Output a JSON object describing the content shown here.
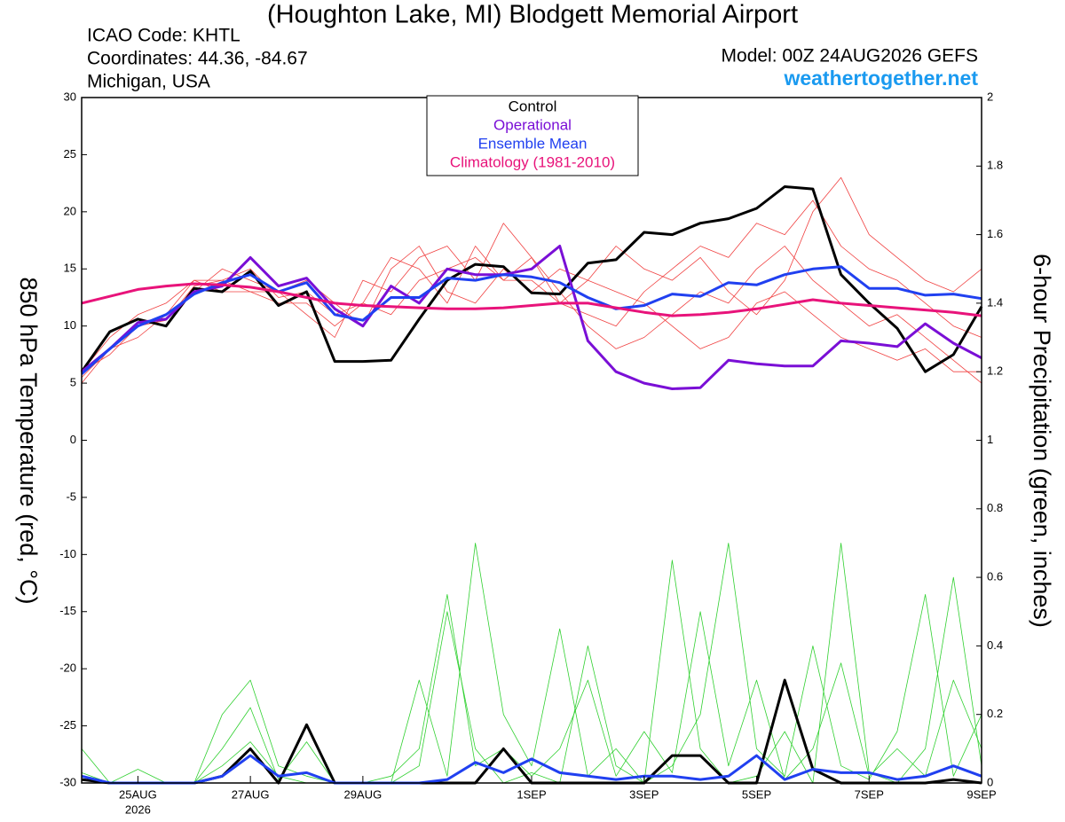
{
  "chart_data": {
    "type": "line",
    "title": "(Houghton Lake, MI) Blodgett Memorial Airport",
    "header_left": [
      "ICAO Code: KHTL",
      "Coordinates: 44.36, -84.67",
      "Michigan, USA"
    ],
    "model": "Model: 00Z 24AUG2026 GEFS",
    "site": "weathertogether.net",
    "y_label": "850 hPa Temperature (red, °C)",
    "y2_label": "6-hour Precipitation (green, inches)",
    "x": [
      0,
      12,
      24,
      36,
      48,
      60,
      72,
      84,
      96,
      108,
      120,
      132,
      144,
      156,
      168,
      180,
      192,
      204,
      216,
      228,
      240,
      252,
      264,
      276,
      288,
      300,
      312,
      324,
      336,
      348,
      360,
      372,
      384
    ],
    "xlim": [
      0,
      384
    ],
    "xticks": [
      {
        "value": 24,
        "label": "25AUG"
      },
      {
        "value": 72,
        "label": "27AUG"
      },
      {
        "value": 120,
        "label": "29AUG"
      },
      {
        "value": 192,
        "label": "1SEP"
      },
      {
        "value": 240,
        "label": "3SEP"
      },
      {
        "value": 288,
        "label": "5SEP"
      },
      {
        "value": 336,
        "label": "7SEP"
      },
      {
        "value": 384,
        "label": "9SEP"
      }
    ],
    "year_label": "2026",
    "ylim": [
      -30,
      30
    ],
    "yticks": [
      -30,
      -25,
      -20,
      -15,
      -10,
      -5,
      0,
      5,
      10,
      15,
      20,
      25,
      30
    ],
    "y2lim": [
      0,
      2
    ],
    "y2ticks": [
      0,
      0.2,
      0.4,
      0.6,
      0.8,
      1,
      1.2,
      1.4,
      1.6,
      1.8,
      2
    ],
    "series": [
      {
        "name": "Control",
        "color": "#000000",
        "width": 3,
        "values": [
          6,
          9.5,
          10.6,
          10,
          13.3,
          13,
          14.8,
          11.8,
          13,
          6.9,
          6.9,
          7,
          10.6,
          14,
          15.4,
          15.2,
          12.9,
          12.8,
          15.5,
          15.8,
          18.2,
          18,
          19,
          19.4,
          20.3,
          22.2,
          22,
          14.5,
          12,
          9.8,
          6,
          7.5,
          11.7
        ]
      },
      {
        "name": "Operational",
        "color": "#7a0fd6",
        "width": 3,
        "values": [
          6,
          8,
          10.3,
          10.6,
          13,
          13.5,
          16,
          13.5,
          14.2,
          11.5,
          10,
          13.5,
          12,
          15,
          14.5,
          14.5,
          15,
          17,
          8.7,
          6,
          5,
          4.5,
          4.6,
          7,
          6.7,
          6.5,
          6.5,
          8.7,
          8.5,
          8.2,
          10.2,
          8.5,
          7.2
        ]
      },
      {
        "name": "Ensemble Mean",
        "color": "#2040f0",
        "width": 3,
        "values": [
          5.8,
          8,
          10,
          11,
          12.8,
          13.8,
          14.5,
          13,
          13.8,
          11,
          10.5,
          12.5,
          12.5,
          14.2,
          14,
          14.5,
          14.3,
          13.8,
          12.5,
          11.5,
          11.8,
          12.8,
          12.6,
          13.8,
          13.6,
          14.5,
          15,
          15.2,
          13.3,
          13.3,
          12.7,
          12.8,
          12.4
        ]
      },
      {
        "name": "Climatology (1981-2010)",
        "color": "#e8137a",
        "width": 3,
        "values": [
          12,
          12.6,
          13.2,
          13.5,
          13.7,
          13.6,
          13.4,
          13,
          12.5,
          12,
          11.8,
          11.7,
          11.6,
          11.5,
          11.5,
          11.6,
          11.8,
          12,
          12,
          11.6,
          11.2,
          10.9,
          11,
          11.2,
          11.5,
          11.9,
          12.3,
          12,
          11.8,
          11.6,
          11.4,
          11.2,
          10.9
        ]
      },
      {
        "axis": "y2",
        "color": "#000000",
        "width": 3,
        "values": [
          0.01,
          0,
          0,
          0,
          0,
          0.02,
          0.1,
          0,
          0.17,
          0,
          0,
          0,
          0,
          0,
          0,
          0.1,
          0,
          0,
          0,
          0,
          0,
          0.08,
          0.08,
          0,
          0,
          0.3,
          0.04,
          0,
          0,
          0,
          0,
          0.01,
          0
        ]
      },
      {
        "axis": "y2",
        "color": "#2040f0",
        "width": 3,
        "values": [
          0.02,
          0,
          0,
          0,
          0,
          0.02,
          0.08,
          0.02,
          0.03,
          0,
          0,
          0,
          0,
          0.01,
          0.06,
          0.03,
          0.07,
          0.03,
          0.02,
          0.01,
          0.02,
          0.02,
          0.01,
          0.02,
          0.08,
          0.01,
          0.04,
          0.03,
          0.03,
          0.01,
          0.02,
          0.05,
          0.02
        ]
      }
    ],
    "members": [
      {
        "color": "#f04040",
        "values": [
          5.5,
          8,
          10,
          11,
          14,
          13,
          13,
          12,
          12,
          10,
          12,
          11,
          14,
          15,
          16,
          14,
          14,
          12,
          11,
          10,
          13,
          15,
          17,
          16,
          19,
          18,
          21,
          17,
          15,
          14,
          12,
          10,
          9
        ]
      },
      {
        "color": "#f04040",
        "values": [
          6,
          9,
          11,
          12,
          14,
          14,
          13,
          13,
          11,
          9,
          14,
          13,
          16,
          17,
          14,
          19,
          16,
          13,
          10,
          8,
          9,
          11,
          13,
          12,
          15,
          17,
          14,
          12,
          10,
          11,
          9,
          7,
          5
        ]
      },
      {
        "color": "#f04040",
        "values": [
          5,
          8,
          9,
          11,
          13,
          15,
          14,
          13,
          14,
          12,
          10,
          15,
          17,
          13,
          12,
          15,
          13,
          15,
          14,
          13,
          12,
          10,
          8,
          9,
          12,
          13,
          11,
          9,
          8,
          7,
          8,
          6,
          6
        ]
      },
      {
        "color": "#f04040",
        "values": [
          6,
          7.5,
          10,
          10.5,
          13.5,
          14,
          15,
          12.5,
          13,
          11,
          12,
          16,
          15,
          12,
          17,
          14,
          16,
          12,
          14,
          17,
          15,
          14,
          16,
          13,
          11,
          14,
          20,
          23,
          18,
          16,
          14,
          13,
          15
        ]
      },
      {
        "color": "#30d030",
        "axis": "y2",
        "values": [
          0,
          0,
          0,
          0,
          0,
          0.05,
          0.12,
          0.02,
          0,
          0,
          0,
          0,
          0.05,
          0.5,
          0.1,
          0,
          0.03,
          0,
          0.4,
          0.05,
          0,
          0.65,
          0.1,
          0,
          0.02,
          0.15,
          0,
          0.7,
          0.03,
          0,
          0.1,
          0.6,
          0.05
        ]
      },
      {
        "color": "#30d030",
        "axis": "y2",
        "values": [
          0.1,
          0,
          0,
          0,
          0,
          0.2,
          0.3,
          0.05,
          0.02,
          0,
          0,
          0,
          0.3,
          0.02,
          0.7,
          0.2,
          0.05,
          0.45,
          0.02,
          0.1,
          0,
          0.05,
          0.2,
          0.7,
          0.1,
          0.02,
          0.4,
          0.05,
          0.01,
          0.15,
          0.55,
          0.02,
          0.2
        ]
      },
      {
        "color": "#30d030",
        "axis": "y2",
        "values": [
          0.03,
          0,
          0.04,
          0,
          0,
          0.1,
          0.22,
          0.01,
          0.12,
          0,
          0,
          0.02,
          0.1,
          0.55,
          0.05,
          0.1,
          0.02,
          0.1,
          0.3,
          0.02,
          0.15,
          0.03,
          0.5,
          0.05,
          0.3,
          0.01,
          0.1,
          0.35,
          0.02,
          0.1,
          0.02,
          0.3,
          0.1
        ]
      }
    ]
  }
}
